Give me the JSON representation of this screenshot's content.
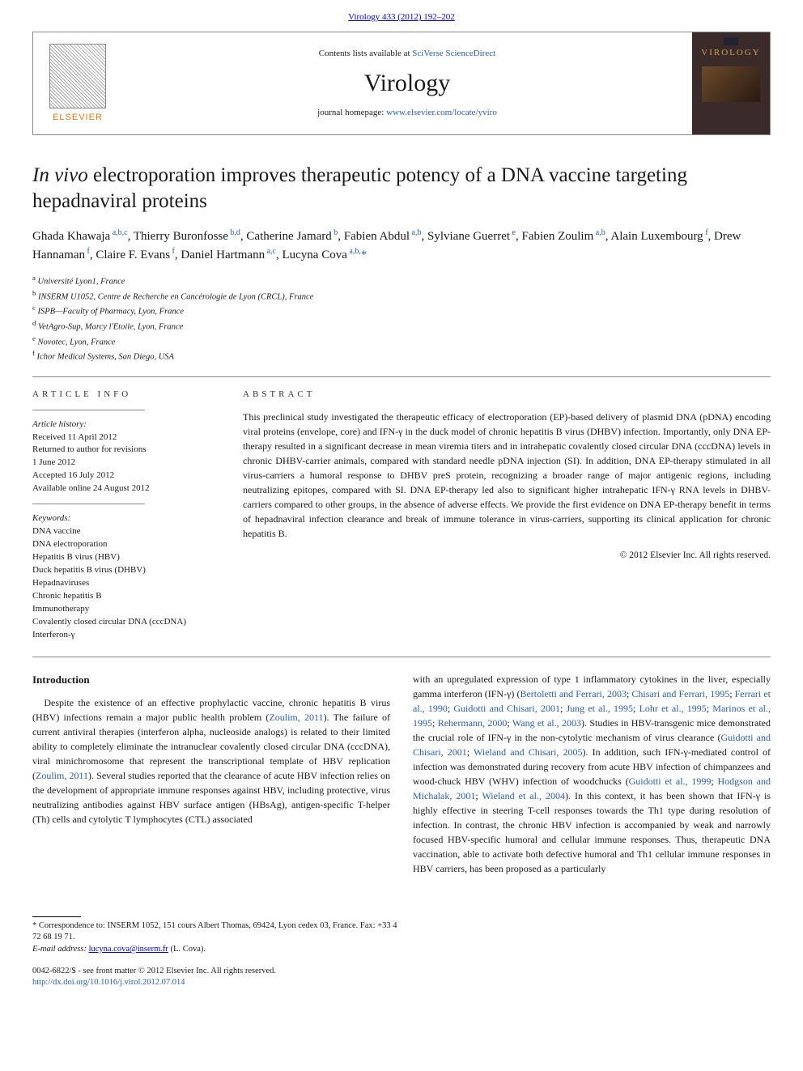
{
  "journal_ref": {
    "prefix": "Virology 433 (2012) 192–202"
  },
  "header": {
    "publisher": "ELSEVIER",
    "sciverse_prefix": "Contents lists available at ",
    "sciverse_link": "SciVerse ScienceDirect",
    "journal": "Virology",
    "homepage_prefix": "journal homepage: ",
    "homepage_link": "www.elsevier.com/locate/yviro",
    "cover_label": "VIROLOGY"
  },
  "title": {
    "italic_lead": "In vivo",
    "rest": " electroporation improves therapeutic potency of a DNA vaccine targeting hepadnaviral proteins"
  },
  "authors_html": [
    {
      "name": "Ghada Khawaja",
      "aff": "a,b,c"
    },
    {
      "name": "Thierry Buronfosse",
      "aff": "b,d"
    },
    {
      "name": "Catherine Jamard",
      "aff": "b"
    },
    {
      "name": "Fabien Abdul",
      "aff": "a,b"
    },
    {
      "name": "Sylviane Guerret",
      "aff": "e"
    },
    {
      "name": "Fabien Zoulim",
      "aff": "a,b"
    },
    {
      "name": "Alain Luxembourg",
      "aff": "f"
    },
    {
      "name": "Drew Hannaman",
      "aff": "f"
    },
    {
      "name": "Claire F. Evans",
      "aff": "f"
    },
    {
      "name": "Daniel Hartmann",
      "aff": "a,c"
    },
    {
      "name": "Lucyna Cova",
      "aff": "a,b,*"
    }
  ],
  "affiliations": [
    {
      "sup": "a",
      "text": "Université Lyon1, France"
    },
    {
      "sup": "b",
      "text": "INSERM U1052, Centre de Recherche en Cancérologie de Lyon (CRCL), France"
    },
    {
      "sup": "c",
      "text": "ISPB—Faculty of Pharmacy, Lyon, France"
    },
    {
      "sup": "d",
      "text": "VetAgro-Sup, Marcy l'Etoile, Lyon, France"
    },
    {
      "sup": "e",
      "text": "Novotec, Lyon, France"
    },
    {
      "sup": "f",
      "text": "Ichor Medical Systems, San Diego, USA"
    }
  ],
  "article_info": {
    "heading": "article info",
    "history_label": "Article history:",
    "history": [
      "Received 11 April 2012",
      "Returned to author for revisions",
      "1 June 2012",
      "Accepted 16 July 2012",
      "Available online 24 August 2012"
    ],
    "keywords_label": "Keywords:",
    "keywords": [
      "DNA vaccine",
      "DNA electroporation",
      "Hepatitis B virus (HBV)",
      "Duck hepatitis B virus (DHBV)",
      "Hepadnaviruses",
      "Chronic hepatitis B",
      "Immunotherapy",
      "Covalently closed circular DNA (cccDNA)",
      "Interferon-γ"
    ]
  },
  "abstract": {
    "heading": "abstract",
    "text": "This preclinical study investigated the therapeutic efficacy of electroporation (EP)-based delivery of plasmid DNA (pDNA) encoding viral proteins (envelope, core) and IFN-γ in the duck model of chronic hepatitis B virus (DHBV) infection. Importantly, only DNA EP-therapy resulted in a significant decrease in mean viremia titers and in intrahepatic covalently closed circular DNA (cccDNA) levels in chronic DHBV-carrier animals, compared with standard needle pDNA injection (SI). In addition, DNA EP-therapy stimulated in all virus-carriers a humoral response to DHBV preS protein, recognizing a broader range of major antigenic regions, including neutralizing epitopes, compared with SI. DNA EP-therapy led also to significant higher intrahepatic IFN-γ RNA levels in DHBV-carriers compared to other groups, in the absence of adverse effects. We provide the first evidence on DNA EP-therapy benefit in terms of hepadnaviral infection clearance and break of immune tolerance in virus-carriers, supporting its clinical application for chronic hepatitis B.",
    "copyright": "© 2012 Elsevier Inc. All rights reserved."
  },
  "intro": {
    "heading": "Introduction",
    "col1": "Despite the existence of an effective prophylactic vaccine, chronic hepatitis B virus (HBV) infections remain a major public health problem (<a class='ref' href='#'>Zoulim, 2011</a>). The failure of current antiviral therapies (interferon alpha, nucleoside analogs) is related to their limited ability to completely eliminate the intranuclear covalently closed circular DNA (cccDNA), viral minichromosome that represent the transcriptional template of HBV replication (<a class='ref' href='#'>Zoulim, 2011</a>). Several studies reported that the clearance of acute HBV infection relies on the development of appropriate immune responses against HBV, including protective, virus neutralizing antibodies against HBV surface antigen (HBsAg), antigen-specific T-helper (Th) cells and cytolytic T lymphocytes (CTL) associated",
    "col2": "with an upregulated expression of type 1 inflammatory cytokines in the liver, especially gamma interferon (IFN-γ) (<a class='ref' href='#'>Bertoletti and Ferrari, 2003</a>; <a class='ref' href='#'>Chisari and Ferrari, 1995</a>; <a class='ref' href='#'>Ferrari et al., 1990</a>; <a class='ref' href='#'>Guidotti and Chisari, 2001</a>; <a class='ref' href='#'>Jung et al., 1995</a>; <a class='ref' href='#'>Lohr et al., 1995</a>; <a class='ref' href='#'>Marinos et al., 1995</a>; <a class='ref' href='#'>Rehermann, 2000</a>; <a class='ref' href='#'>Wang et al., 2003</a>). Studies in HBV-transgenic mice demonstrated the crucial role of IFN-γ in the non-cytolytic mechanism of virus clearance (<a class='ref' href='#'>Guidotti and Chisari, 2001</a>; <a class='ref' href='#'>Wieland and Chisari, 2005</a>). In addition, such IFN-γ-mediated control of infection was demonstrated during recovery from acute HBV infection of chimpanzees and wood-chuck HBV (WHV) infection of woodchucks (<a class='ref' href='#'>Guidotti et al., 1999</a>; <a class='ref' href='#'>Hodgson and Michalak, 2001</a>; <a class='ref' href='#'>Wieland et al., 2004</a>). In this context, it has been shown that IFN-γ is highly effective in steering T-cell responses towards the Th1 type during resolution of infection. In contrast, the chronic HBV infection is accompanied by weak and narrowly focused HBV-specific humoral and cellular immune responses. Thus, therapeutic DNA vaccination, able to activate both defective humoral and Th1 cellular immune responses in HBV carriers, has been proposed as a particularly"
  },
  "footnotes": {
    "corr_label": "* Correspondence to: ",
    "corr_text": "INSERM 1052, 151 cours Albert Thomas, 69424, Lyon cedex 03, France. Fax: +33 4 72 68 19 71.",
    "email_label": "E-mail address: ",
    "email": "lucyna.cova@inserm.fr",
    "email_suffix": " (L. Cova)."
  },
  "bottom": {
    "line1_prefix": "0042-6822/$ - see front matter © 2012 Elsevier Inc. All rights reserved.",
    "doi": "http://dx.doi.org/10.1016/j.virol.2012.07.014"
  },
  "colors": {
    "link": "#2a5db0",
    "orange": "#e67817"
  }
}
